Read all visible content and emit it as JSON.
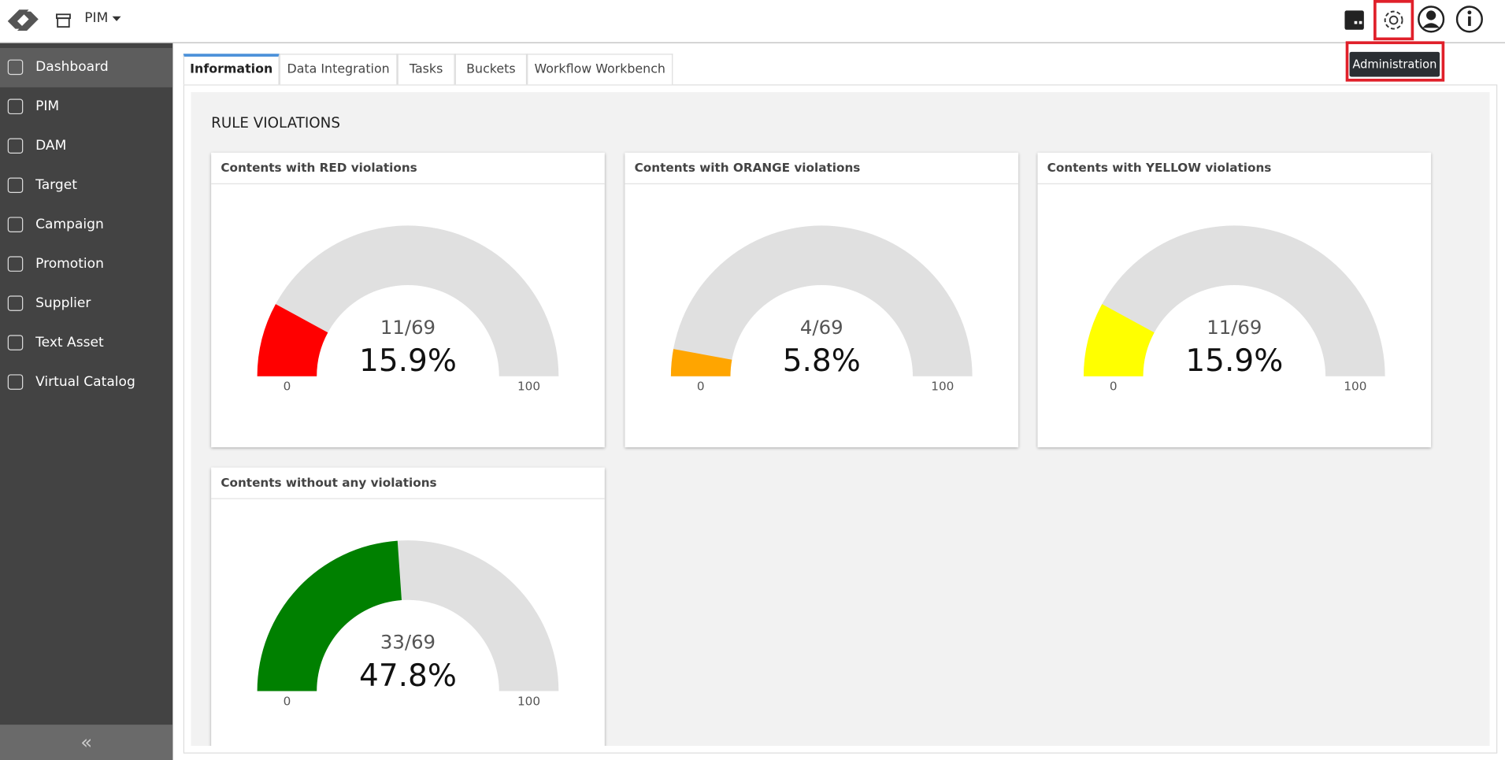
{
  "header": {
    "app": "PIM",
    "tooltip": "Administration"
  },
  "sidebar": {
    "items": [
      "Dashboard",
      "PIM",
      "DAM",
      "Target",
      "Campaign",
      "Promotion",
      "Supplier",
      "Text Asset",
      "Virtual Catalog"
    ]
  },
  "tabs": [
    "Information",
    "Data Integration",
    "Tasks",
    "Buckets",
    "Workflow Workbench"
  ],
  "section_title": "RULE VIOLATIONS",
  "chart_data": [
    {
      "type": "gauge",
      "title": "Contents with RED violations",
      "annotation": "11/69",
      "values": [
        15.9
      ],
      "value_labels": [
        "15.9%"
      ],
      "color": "#ff0000",
      "ylim": [
        0,
        100
      ],
      "yticks": [
        0,
        100
      ]
    },
    {
      "type": "gauge",
      "title": "Contents with ORANGE violations",
      "annotation": "4/69",
      "values": [
        5.8
      ],
      "value_labels": [
        "5.8%"
      ],
      "color": "#ffa500",
      "ylim": [
        0,
        100
      ],
      "yticks": [
        0,
        100
      ]
    },
    {
      "type": "gauge",
      "title": "Contents with YELLOW violations",
      "annotation": "11/69",
      "values": [
        15.9
      ],
      "value_labels": [
        "15.9%"
      ],
      "color": "#ffff00",
      "ylim": [
        0,
        100
      ],
      "yticks": [
        0,
        100
      ]
    },
    {
      "type": "gauge",
      "title": "Contents without any violations",
      "annotation": "33/69",
      "values": [
        47.8
      ],
      "value_labels": [
        "47.8%"
      ],
      "color": "#008000",
      "ylim": [
        0,
        100
      ],
      "yticks": [
        0,
        100
      ]
    }
  ]
}
